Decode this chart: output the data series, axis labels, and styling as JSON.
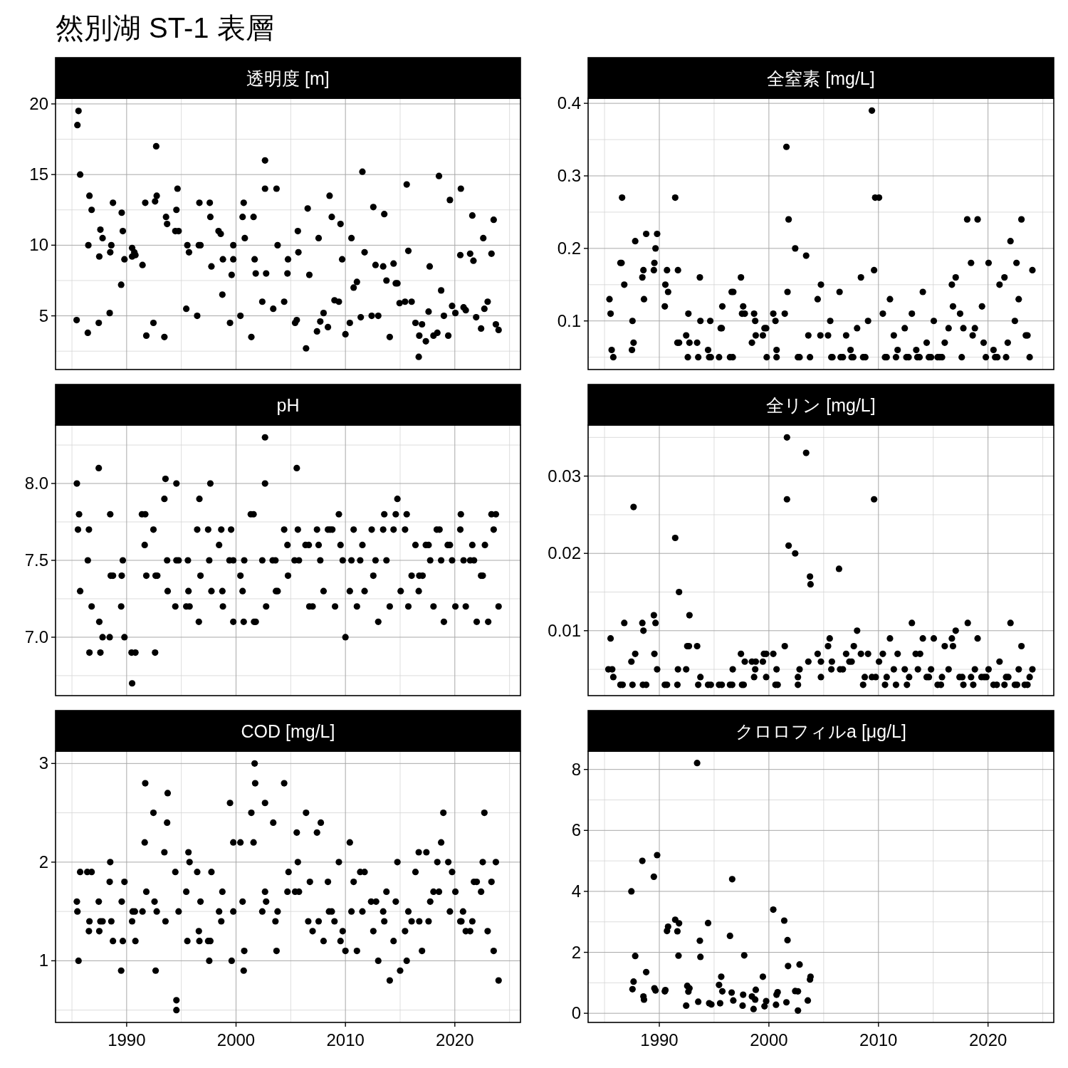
{
  "chart_data": [
    {
      "type": "scatter",
      "title": "透明度 [m]",
      "annotations": [
        "然別湖 ST-1 表層"
      ],
      "color": "#000000",
      "marker": "circle",
      "grid": true,
      "tick_labels": "y",
      "xlim": [
        1983.5,
        2026.0
      ],
      "xticks": [
        1990,
        2000,
        2010,
        2020
      ],
      "ylim": [
        1.2,
        20.4
      ],
      "yticks": [
        5,
        10,
        15,
        20
      ],
      "x": [
        1985.43,
        1985.5,
        1985.6,
        1985.75,
        1986.45,
        1986.6,
        1986.8,
        1986.5,
        1987.45,
        1987.5,
        1987.6,
        1987.8,
        1988.45,
        1988.5,
        1988.6,
        1988.75,
        1989.5,
        1989.55,
        1989.65,
        1989.8,
        1990.5,
        1990.7,
        1990.5,
        1990.8,
        1991.45,
        1991.7,
        1991.8,
        1992.45,
        1992.6,
        1992.7,
        1992.75,
        1993.45,
        1993.6,
        1993.7,
        1994.45,
        1994.55,
        1994.65,
        1994.75,
        1995.45,
        1995.55,
        1995.7,
        1996.45,
        1996.65,
        1996.6,
        1996.75,
        1997.6,
        1997.65,
        1997.75,
        1998.4,
        1998.6,
        1998.75,
        1998.8,
        1999.45,
        1999.6,
        1999.75,
        1999.75,
        2000.4,
        2000.6,
        2000.7,
        2000.8,
        2001.4,
        2001.6,
        2001.7,
        2001.8,
        2002.4,
        2002.65,
        2002.65,
        2002.75,
        2003.4,
        2003.7,
        2003.8,
        2004.4,
        2004.7,
        2004.75,
        2005.4,
        2005.55,
        2005.65,
        2005.7,
        2006.4,
        2006.55,
        2006.7,
        2007.4,
        2007.55,
        2007.7,
        2008.0,
        2008.4,
        2008.55,
        2008.75,
        2009.0,
        2009.4,
        2009.55,
        2009.7,
        2010.0,
        2010.4,
        2010.55,
        2010.75,
        2011.05,
        2011.4,
        2011.55,
        2011.75,
        2012.4,
        2012.55,
        2012.75,
        2013.0,
        2013.45,
        2013.55,
        2013.75,
        2014.05,
        2014.4,
        2014.6,
        2014.75,
        2014.95,
        2015.45,
        2015.6,
        2015.75,
        2016.05,
        2016.4,
        2016.75,
        2017.0,
        2016.7,
        2017.35,
        2017.6,
        2017.7,
        2018.05,
        2018.4,
        2018.55,
        2018.75,
        2019.0,
        2019.4,
        2019.55,
        2019.75,
        2020.05,
        2020.5,
        2020.55,
        2020.8,
        2021.0,
        2021.4,
        2021.6,
        2021.7,
        2021.95,
        2022.4,
        2022.6,
        2022.7,
        2023.0,
        2023.35,
        2023.55,
        2023.75,
        2024.0
      ],
      "values": [
        4.7,
        18.5,
        19.5,
        15.0,
        3.8,
        13.5,
        12.5,
        10.0,
        4.5,
        9.2,
        11.1,
        10.5,
        5.2,
        9.5,
        10.0,
        13.0,
        7.2,
        12.3,
        11.0,
        9.0,
        9.8,
        9.5,
        9.2,
        9.3,
        8.6,
        13.0,
        3.6,
        4.5,
        13.1,
        17.0,
        13.5,
        3.5,
        12.0,
        11.5,
        11.0,
        12.5,
        14.0,
        11.0,
        5.5,
        10.0,
        9.5,
        5.0,
        13.0,
        10.0,
        10.0,
        13.0,
        12.0,
        8.5,
        11.0,
        10.8,
        6.5,
        9.0,
        4.5,
        7.9,
        9.0,
        10.0,
        5.0,
        12.0,
        13.0,
        10.5,
        3.5,
        12.0,
        9.0,
        8.0,
        6.0,
        16.0,
        14.0,
        8.0,
        5.5,
        14.0,
        10.0,
        6.0,
        8.0,
        9.0,
        4.5,
        4.7,
        11.0,
        9.5,
        2.7,
        12.6,
        7.9,
        3.9,
        10.5,
        4.6,
        5.2,
        4.2,
        13.5,
        12.0,
        6.1,
        6.0,
        11.5,
        9.0,
        3.7,
        4.5,
        10.5,
        7.0,
        7.4,
        4.9,
        15.2,
        9.5,
        5.0,
        12.7,
        8.6,
        5.0,
        8.5,
        12.2,
        7.5,
        3.5,
        8.7,
        7.3,
        7.3,
        5.9,
        6.0,
        14.3,
        9.6,
        6.0,
        4.5,
        3.6,
        4.4,
        2.1,
        3.2,
        5.3,
        8.5,
        3.6,
        3.8,
        14.9,
        6.8,
        5.0,
        3.6,
        13.2,
        5.7,
        5.2,
        9.3,
        14.0,
        5.6,
        5.4,
        9.4,
        12.1,
        8.9,
        4.9,
        4.1,
        10.5,
        5.5,
        6.0,
        9.4,
        11.8,
        4.4,
        4.0
      ]
    },
    {
      "type": "scatter",
      "title": "全窒素 [mg/L]",
      "color": "#000000",
      "marker": "circle",
      "grid": true,
      "tick_labels": "y",
      "xlim": [
        1983.5,
        2026.0
      ],
      "xticks": [
        1990,
        2000,
        2010,
        2020
      ],
      "ylim": [
        0.033,
        0.407
      ],
      "yticks": [
        0.1,
        0.2,
        0.3,
        0.4
      ],
      "x": [
        1985.45,
        1985.55,
        1985.65,
        1985.8,
        1986.45,
        1986.55,
        1986.6,
        1986.8,
        1987.5,
        1987.55,
        1987.65,
        1987.8,
        1988.45,
        1988.55,
        1988.6,
        1988.8,
        1989.5,
        1989.55,
        1989.65,
        1989.8,
        1990.5,
        1990.55,
        1990.7,
        1990.8,
        1991.45,
        1991.7,
        1991.65,
        1991.8,
        1992.45,
        1992.65,
        1992.6,
        1992.75,
        1993.45,
        1993.55,
        1993.7,
        1993.75,
        1994.45,
        1994.55,
        1994.7,
        1994.65,
        1995.45,
        1995.6,
        1995.7,
        1995.75,
        1996.45,
        1996.7,
        1996.6,
        1996.75,
        1997.45,
        1997.55,
        1997.65,
        1997.8,
        1998.45,
        1998.65,
        1998.75,
        1998.8,
        1999.45,
        1999.6,
        1999.75,
        1999.8,
        2000.4,
        2000.6,
        2000.7,
        2000.7,
        2001.45,
        2001.6,
        2001.7,
        2001.8,
        2002.4,
        2002.65,
        2002.8,
        2003.4,
        2003.6,
        2003.75,
        2004.45,
        2004.75,
        2004.7,
        2005.4,
        2005.6,
        2005.7,
        2005.8,
        2006.45,
        2006.55,
        2006.75,
        2007.05,
        2007.45,
        2007.55,
        2007.7,
        2008.05,
        2008.4,
        2008.6,
        2008.8,
        2009.05,
        2009.4,
        2009.6,
        2009.7,
        2010.05,
        2010.4,
        2010.6,
        2010.75,
        2011.05,
        2011.4,
        2011.6,
        2011.75,
        2012.4,
        2012.55,
        2012.75,
        2013.05,
        2013.45,
        2013.55,
        2013.75,
        2014.05,
        2014.4,
        2014.6,
        2014.8,
        2015.05,
        2015.4,
        2015.6,
        2015.8,
        2016.05,
        2016.4,
        2016.7,
        2016.8,
        2017.05,
        2017.45,
        2017.6,
        2017.75,
        2018.1,
        2018.45,
        2018.6,
        2018.8,
        2019.05,
        2019.45,
        2019.6,
        2019.8,
        2020.05,
        2020.5,
        2020.65,
        2020.85,
        2021.05,
        2021.5,
        2021.65,
        2021.8,
        2022.05,
        2022.45,
        2022.6,
        2022.8,
        2023.05,
        2023.45,
        2023.6,
        2023.8,
        2024.05
      ],
      "values": [
        0.13,
        0.11,
        0.06,
        0.05,
        0.18,
        0.18,
        0.27,
        0.15,
        0.06,
        0.1,
        0.07,
        0.21,
        0.16,
        0.17,
        0.13,
        0.22,
        0.17,
        0.18,
        0.2,
        0.22,
        0.12,
        0.15,
        0.17,
        0.14,
        0.27,
        0.17,
        0.07,
        0.07,
        0.08,
        0.11,
        0.05,
        0.07,
        0.07,
        0.05,
        0.16,
        0.1,
        0.06,
        0.05,
        0.05,
        0.1,
        0.05,
        0.09,
        0.09,
        0.12,
        0.05,
        0.05,
        0.14,
        0.14,
        0.16,
        0.11,
        0.12,
        0.11,
        0.07,
        0.11,
        0.1,
        0.08,
        0.08,
        0.09,
        0.09,
        0.05,
        0.11,
        0.1,
        0.06,
        0.05,
        0.11,
        0.34,
        0.14,
        0.24,
        0.2,
        0.05,
        0.05,
        0.19,
        0.08,
        0.05,
        0.13,
        0.15,
        0.08,
        0.08,
        0.1,
        0.05,
        0.05,
        0.14,
        0.05,
        0.05,
        0.08,
        0.06,
        0.05,
        0.05,
        0.09,
        0.16,
        0.05,
        0.05,
        0.1,
        0.39,
        0.17,
        0.27,
        0.27,
        0.11,
        0.05,
        0.05,
        0.13,
        0.08,
        0.05,
        0.06,
        0.09,
        0.05,
        0.05,
        0.11,
        0.06,
        0.05,
        0.05,
        0.14,
        0.07,
        0.05,
        0.05,
        0.1,
        0.05,
        0.05,
        0.05,
        0.07,
        0.09,
        0.15,
        0.12,
        0.16,
        0.11,
        0.05,
        0.09,
        0.24,
        0.18,
        0.08,
        0.09,
        0.24,
        0.12,
        0.07,
        0.05,
        0.18,
        0.06,
        0.05,
        0.05,
        0.15,
        0.16,
        0.05,
        0.07,
        0.21,
        0.1,
        0.18,
        0.13,
        0.24,
        0.08,
        0.08,
        0.05,
        0.17
      ]
    },
    {
      "type": "scatter",
      "title": "pH",
      "color": "#000000",
      "marker": "circle",
      "grid": true,
      "tick_labels": "y",
      "xlim": [
        1983.5,
        2026.0
      ],
      "xticks": [
        1990,
        2000,
        2010,
        2020
      ],
      "ylim": [
        6.62,
        8.38
      ],
      "yticks": [
        {
          "value": 7,
          "label": "7.0"
        },
        7.5,
        {
          "value": 8,
          "label": "8.0"
        }
      ],
      "x": [
        1985.45,
        1985.65,
        1985.55,
        1985.75,
        1986.45,
        1986.55,
        1986.6,
        1986.8,
        1987.45,
        1987.5,
        1987.6,
        1987.8,
        1988.45,
        1988.5,
        1988.55,
        1988.75,
        1989.5,
        1989.55,
        1989.65,
        1989.8,
        1990.5,
        1990.45,
        1990.8,
        1991.4,
        1991.7,
        1991.65,
        1991.8,
        1992.45,
        1992.6,
        1992.65,
        1992.8,
        1993.45,
        1993.55,
        1993.7,
        1993.75,
        1994.45,
        1994.55,
        1994.55,
        1994.75,
        1995.45,
        1995.6,
        1995.65,
        1995.75,
        1996.45,
        1996.6,
        1996.65,
        1996.75,
        1997.45,
        1997.55,
        1997.65,
        1997.75,
        1998.45,
        1998.65,
        1998.75,
        1998.8,
        1999.4,
        1999.55,
        1999.75,
        1999.75,
        2000.4,
        2000.6,
        2000.7,
        2000.75,
        2001.35,
        2001.6,
        2001.65,
        2001.8,
        2002.4,
        2002.65,
        2002.65,
        2002.75,
        2003.35,
        2003.6,
        2003.65,
        2003.8,
        2004.4,
        2004.7,
        2004.75,
        2005.35,
        2005.55,
        2005.65,
        2005.75,
        2006.35,
        2006.65,
        2006.7,
        2007.0,
        2007.4,
        2007.55,
        2007.7,
        2008.0,
        2008.4,
        2008.6,
        2008.8,
        2009.05,
        2009.4,
        2009.55,
        2009.75,
        2010.0,
        2010.4,
        2010.55,
        2010.75,
        2011.05,
        2011.35,
        2011.55,
        2011.75,
        2012.4,
        2012.55,
        2012.75,
        2013.0,
        2013.45,
        2013.55,
        2013.75,
        2014.05,
        2014.4,
        2014.6,
        2014.75,
        2015.05,
        2015.45,
        2015.6,
        2015.75,
        2016.05,
        2016.4,
        2016.7,
        2016.75,
        2017.05,
        2017.35,
        2017.6,
        2017.75,
        2018.05,
        2018.35,
        2018.6,
        2018.75,
        2019.0,
        2019.35,
        2019.55,
        2019.75,
        2020.05,
        2020.5,
        2020.55,
        2020.8,
        2021.0,
        2021.4,
        2021.6,
        2021.75,
        2022.0,
        2022.4,
        2022.55,
        2022.75,
        2023.05,
        2023.35,
        2023.55,
        2023.75,
        2024.0
      ],
      "values": [
        8.0,
        7.8,
        7.7,
        7.3,
        7.5,
        7.7,
        6.9,
        7.2,
        8.1,
        7.1,
        6.9,
        7.0,
        7.0,
        7.8,
        7.4,
        7.4,
        7.2,
        7.4,
        7.5,
        7.0,
        6.7,
        6.9,
        6.9,
        7.8,
        7.8,
        7.6,
        7.4,
        7.7,
        6.9,
        7.4,
        7.4,
        7.9,
        8.03,
        7.5,
        7.3,
        7.2,
        8.0,
        7.5,
        7.5,
        7.2,
        7.5,
        7.3,
        7.2,
        7.7,
        7.1,
        7.9,
        7.4,
        7.7,
        7.5,
        8.0,
        7.3,
        7.6,
        7.7,
        7.3,
        7.2,
        7.5,
        7.7,
        7.5,
        7.1,
        7.4,
        7.3,
        7.1,
        7.5,
        7.8,
        7.8,
        7.1,
        7.1,
        7.5,
        8.3,
        8.0,
        7.2,
        7.5,
        7.5,
        7.3,
        7.3,
        7.7,
        7.6,
        7.4,
        7.5,
        8.1,
        7.7,
        7.5,
        7.6,
        7.6,
        7.2,
        7.2,
        7.7,
        7.6,
        7.5,
        7.3,
        7.7,
        7.7,
        7.7,
        7.2,
        7.8,
        7.6,
        7.5,
        7.0,
        7.3,
        7.5,
        7.7,
        7.2,
        7.5,
        7.6,
        7.3,
        7.7,
        7.4,
        7.5,
        7.1,
        7.7,
        7.8,
        7.5,
        7.2,
        7.7,
        7.8,
        7.9,
        7.3,
        7.7,
        7.8,
        7.2,
        7.4,
        7.6,
        7.3,
        7.4,
        7.4,
        7.6,
        7.6,
        7.5,
        7.2,
        7.7,
        7.7,
        7.5,
        7.1,
        7.6,
        7.6,
        7.5,
        7.2,
        7.7,
        7.8,
        7.5,
        7.2,
        7.5,
        7.6,
        7.5,
        7.1,
        7.4,
        7.4,
        7.6,
        7.1,
        7.8,
        7.7,
        7.8,
        7.2
      ]
    },
    {
      "type": "scatter",
      "title": "全リン [mg/L]",
      "color": "#000000",
      "marker": "circle",
      "grid": true,
      "tick_labels": "y",
      "xlim": [
        1983.5,
        2026.0
      ],
      "xticks": [
        1990,
        2000,
        2010,
        2020
      ],
      "ylim": [
        0.0016,
        0.0366
      ],
      "yticks": [
        0.01,
        0.02,
        0.03
      ],
      "x": [
        1985.55,
        1985.35,
        1985.7,
        1985.8,
        1986.45,
        1986.65,
        1986.8,
        1987.45,
        1987.55,
        1987.65,
        1987.8,
        1988.45,
        1988.55,
        1988.5,
        1988.8,
        1989.5,
        1989.55,
        1989.65,
        1989.8,
        1990.5,
        1990.7,
        1991.45,
        1991.65,
        1991.7,
        1991.8,
        1992.45,
        1992.55,
        1992.7,
        1992.75,
        1993.45,
        1993.55,
        1993.75,
        1994.45,
        1994.7,
        1995.45,
        1995.7,
        1996.45,
        1996.65,
        1996.7,
        1997.45,
        1997.55,
        1997.7,
        1997.8,
        1998.45,
        1998.65,
        1998.75,
        1998.8,
        1999.45,
        1999.55,
        1999.75,
        1999.75,
        2000.4,
        2000.6,
        2000.8,
        2000.7,
        2001.45,
        2001.65,
        2001.65,
        2001.8,
        2002.4,
        2002.65,
        2002.65,
        2002.8,
        2003.4,
        2003.6,
        2003.75,
        2003.8,
        2004.45,
        2004.75,
        2004.75,
        2005.4,
        2005.55,
        2005.7,
        2005.75,
        2006.4,
        2006.5,
        2006.75,
        2007.05,
        2007.35,
        2007.55,
        2007.75,
        2008.05,
        2008.4,
        2008.6,
        2008.75,
        2009.05,
        2009.4,
        2009.6,
        2009.75,
        2010.05,
        2010.4,
        2010.6,
        2010.75,
        2011.05,
        2011.4,
        2011.6,
        2011.75,
        2012.4,
        2012.6,
        2012.8,
        2013.05,
        2013.4,
        2013.6,
        2013.8,
        2014.05,
        2014.4,
        2014.6,
        2014.8,
        2015.05,
        2015.4,
        2015.7,
        2015.8,
        2016.05,
        2016.4,
        2016.7,
        2016.8,
        2017.05,
        2017.4,
        2017.65,
        2017.75,
        2018.15,
        2018.45,
        2018.65,
        2018.8,
        2019.05,
        2019.4,
        2019.65,
        2019.85,
        2020.05,
        2020.5,
        2020.8,
        2021.05,
        2021.5,
        2021.65,
        2021.85,
        2022.05,
        2022.45,
        2022.65,
        2022.8,
        2023.05,
        2023.35,
        2023.6,
        2023.8,
        2024.05
      ],
      "values": [
        0.009,
        0.005,
        0.005,
        0.004,
        0.003,
        0.003,
        0.011,
        0.006,
        0.003,
        0.026,
        0.007,
        0.011,
        0.01,
        0.003,
        0.003,
        0.012,
        0.007,
        0.011,
        0.005,
        0.003,
        0.003,
        0.022,
        0.003,
        0.005,
        0.015,
        0.005,
        0.008,
        0.008,
        0.012,
        0.008,
        0.003,
        0.004,
        0.003,
        0.003,
        0.003,
        0.003,
        0.003,
        0.003,
        0.005,
        0.007,
        0.003,
        0.003,
        0.006,
        0.006,
        0.004,
        0.005,
        0.006,
        0.006,
        0.007,
        0.007,
        0.004,
        0.007,
        0.003,
        0.003,
        0.005,
        0.008,
        0.027,
        0.035,
        0.021,
        0.02,
        0.003,
        0.004,
        0.005,
        0.033,
        0.006,
        0.017,
        0.016,
        0.007,
        0.004,
        0.006,
        0.008,
        0.009,
        0.005,
        0.006,
        0.018,
        0.005,
        0.005,
        0.007,
        0.006,
        0.006,
        0.008,
        0.01,
        0.007,
        0.003,
        0.004,
        0.007,
        0.004,
        0.027,
        0.004,
        0.006,
        0.007,
        0.003,
        0.004,
        0.009,
        0.005,
        0.003,
        0.007,
        0.005,
        0.003,
        0.004,
        0.011,
        0.007,
        0.005,
        0.007,
        0.009,
        0.004,
        0.004,
        0.005,
        0.009,
        0.003,
        0.003,
        0.004,
        0.008,
        0.005,
        0.009,
        0.008,
        0.01,
        0.004,
        0.004,
        0.003,
        0.011,
        0.004,
        0.003,
        0.005,
        0.009,
        0.004,
        0.004,
        0.004,
        0.005,
        0.003,
        0.003,
        0.006,
        0.003,
        0.004,
        0.004,
        0.011,
        0.003,
        0.003,
        0.005,
        0.008,
        0.003,
        0.003,
        0.004,
        0.005
      ]
    },
    {
      "type": "scatter",
      "title": "COD [mg/L]",
      "color": "#000000",
      "marker": "circle",
      "grid": true,
      "xlim": [
        1983.5,
        2026.0
      ],
      "xticks": [
        1990,
        2000,
        2010,
        2020
      ],
      "ylim": [
        0.375,
        3.125
      ],
      "yticks": [
        1,
        2,
        3
      ],
      "x": [
        1985.45,
        1985.5,
        1985.6,
        1985.75,
        1986.4,
        1986.8,
        1986.55,
        1986.6,
        1987.45,
        1987.5,
        1987.6,
        1987.8,
        1988.45,
        1988.5,
        1988.6,
        1988.75,
        1989.5,
        1989.55,
        1989.65,
        1989.8,
        1990.5,
        1990.55,
        1990.75,
        1990.8,
        1991.45,
        1991.65,
        1991.7,
        1991.8,
        1992.45,
        1992.55,
        1992.65,
        1992.75,
        1993.45,
        1993.55,
        1993.7,
        1993.75,
        1994.45,
        1994.55,
        1994.55,
        1994.75,
        1995.45,
        1995.55,
        1995.65,
        1995.75,
        1996.45,
        1996.6,
        1996.65,
        1996.75,
        1997.45,
        1997.55,
        1997.65,
        1997.75,
        1998.45,
        1998.65,
        1998.75,
        1999.45,
        1999.6,
        1999.75,
        1999.75,
        2000.4,
        2000.6,
        2000.7,
        2000.75,
        2001.4,
        2001.6,
        2001.7,
        2001.75,
        2002.4,
        2002.65,
        2002.65,
        2002.75,
        2003.4,
        2003.6,
        2003.7,
        2003.8,
        2004.4,
        2004.7,
        2004.8,
        2005.4,
        2005.55,
        2005.65,
        2005.75,
        2006.4,
        2006.6,
        2006.75,
        2007.0,
        2007.4,
        2007.55,
        2007.75,
        2008.0,
        2008.4,
        2008.5,
        2008.75,
        2009.0,
        2009.4,
        2009.55,
        2009.75,
        2010.0,
        2010.4,
        2010.55,
        2010.75,
        2011.05,
        2011.35,
        2011.55,
        2011.75,
        2012.35,
        2012.55,
        2012.8,
        2013.0,
        2013.45,
        2013.55,
        2013.75,
        2014.05,
        2014.4,
        2014.6,
        2014.75,
        2015.0,
        2015.45,
        2015.6,
        2015.75,
        2016.05,
        2016.4,
        2016.7,
        2016.75,
        2017.0,
        2017.4,
        2017.6,
        2017.75,
        2018.05,
        2018.4,
        2018.55,
        2018.75,
        2018.95,
        2019.4,
        2019.55,
        2019.75,
        2020.05,
        2020.5,
        2020.6,
        2020.75,
        2021.0,
        2021.4,
        2021.6,
        2021.75,
        2022.0,
        2022.4,
        2022.55,
        2022.7,
        2023.0,
        2023.35,
        2023.55,
        2023.75,
        2024.0
      ],
      "values": [
        1.6,
        1.5,
        1.0,
        1.9,
        1.9,
        1.9,
        1.3,
        1.4,
        1.6,
        1.3,
        1.4,
        1.4,
        1.8,
        2.0,
        1.4,
        1.2,
        0.9,
        1.6,
        1.2,
        1.8,
        1.4,
        1.5,
        1.5,
        1.2,
        1.5,
        2.2,
        2.8,
        1.7,
        2.5,
        1.6,
        0.9,
        1.5,
        2.1,
        1.4,
        2.4,
        2.7,
        1.9,
        0.6,
        0.5,
        1.5,
        1.7,
        1.2,
        2.1,
        2.0,
        1.9,
        1.3,
        1.2,
        1.6,
        1.2,
        1.0,
        1.2,
        1.9,
        1.5,
        1.4,
        1.7,
        2.6,
        1.0,
        2.2,
        1.5,
        2.2,
        1.6,
        0.9,
        1.1,
        2.5,
        2.2,
        3.0,
        2.8,
        1.5,
        2.6,
        1.7,
        1.6,
        2.4,
        1.4,
        1.1,
        1.5,
        2.8,
        1.7,
        1.9,
        1.7,
        2.3,
        2.0,
        1.7,
        2.5,
        1.4,
        1.8,
        1.3,
        2.3,
        1.4,
        2.4,
        1.2,
        1.8,
        1.5,
        1.5,
        1.4,
        2.0,
        1.2,
        1.3,
        1.1,
        2.2,
        1.5,
        1.8,
        1.1,
        1.9,
        1.5,
        1.9,
        1.6,
        1.3,
        1.6,
        1.0,
        1.5,
        1.4,
        1.7,
        0.8,
        1.2,
        1.6,
        2.0,
        0.9,
        1.3,
        1.0,
        1.5,
        1.4,
        1.9,
        2.1,
        1.4,
        1.1,
        2.1,
        1.4,
        1.6,
        1.7,
        2.0,
        1.7,
        2.2,
        2.5,
        2.0,
        1.5,
        1.9,
        1.7,
        1.4,
        1.4,
        1.5,
        1.3,
        1.3,
        1.4,
        1.8,
        1.8,
        1.7,
        2.0,
        2.5,
        1.3,
        1.8,
        1.1,
        2.0,
        0.8
      ]
    },
    {
      "type": "scatter",
      "title": "クロロフィルa [μg/L]",
      "color": "#000000",
      "marker": "circle",
      "grid": true,
      "xlim": [
        1983.5,
        2026.0
      ],
      "xticks": [
        1990,
        2000,
        2010,
        2020
      ],
      "ylim": [
        -0.3,
        8.6
      ],
      "yticks": [
        0,
        2,
        4,
        6,
        8
      ],
      "x": [
        1987.45,
        1987.55,
        1987.65,
        1987.8,
        1988.45,
        1988.55,
        1988.6,
        1988.8,
        1989.5,
        1989.55,
        1989.65,
        1989.8,
        1990.5,
        1990.55,
        1990.7,
        1990.8,
        1991.45,
        1991.65,
        1991.8,
        1991.75,
        1992.45,
        1992.55,
        1992.65,
        1992.75,
        1993.45,
        1993.55,
        1993.7,
        1993.75,
        1994.45,
        1994.55,
        1994.75,
        1995.45,
        1995.55,
        1995.65,
        1995.75,
        1996.45,
        1996.6,
        1996.65,
        1996.75,
        1997.6,
        1997.65,
        1997.75,
        1998.45,
        1998.6,
        1998.75,
        1998.8,
        1999.45,
        1999.6,
        1999.75,
        2000.4,
        2000.65,
        2000.7,
        2000.8,
        2001.4,
        2001.6,
        2001.7,
        2001.75,
        2002.4,
        2002.65,
        2002.65,
        2002.8,
        2003.55,
        2003.75,
        2003.8
      ],
      "values": [
        4.0,
        0.79,
        1.04,
        1.88,
        5.0,
        0.55,
        0.45,
        1.35,
        4.48,
        0.82,
        0.75,
        5.19,
        0.72,
        0.76,
        2.7,
        2.84,
        3.07,
        2.69,
        2.95,
        1.89,
        0.25,
        0.9,
        0.71,
        0.82,
        8.21,
        0.38,
        2.38,
        1.85,
        2.96,
        0.33,
        0.29,
        0.93,
        0.33,
        1.2,
        0.72,
        2.54,
        0.68,
        4.4,
        0.42,
        0.25,
        0.61,
        1.9,
        0.55,
        0.14,
        0.45,
        0.77,
        1.2,
        0.23,
        0.4,
        3.4,
        0.28,
        0.61,
        0.69,
        3.04,
        0.36,
        2.4,
        1.55,
        0.73,
        0.09,
        0.72,
        1.6,
        0.42,
        1.11,
        1.2
      ]
    }
  ]
}
